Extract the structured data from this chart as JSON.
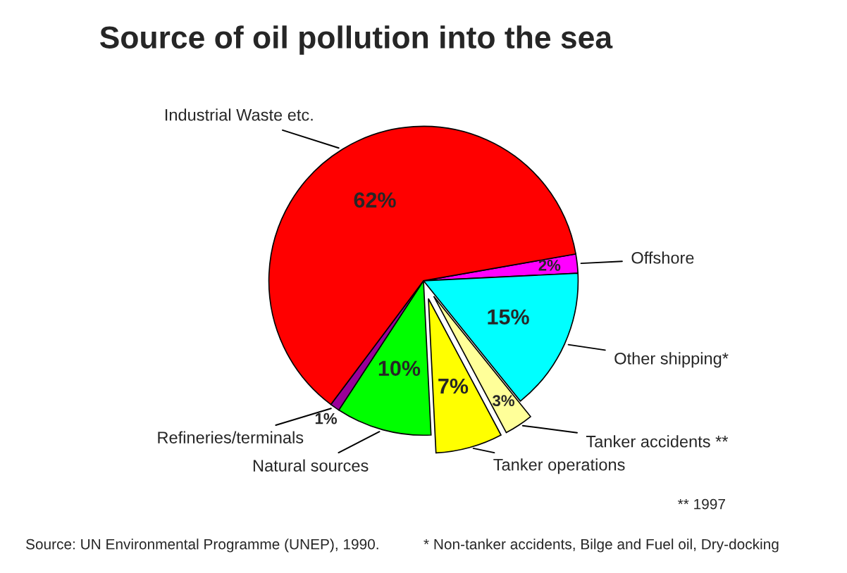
{
  "chart_data": {
    "type": "pie",
    "title": "Source of oil pollution into the sea",
    "categories": [
      "Offshore",
      "Other shipping*",
      "Tanker accidents **",
      "Tanker operations",
      "Natural sources",
      "Refineries/terminals",
      "Industrial Waste etc."
    ],
    "values": [
      2,
      15,
      3,
      7,
      10,
      1,
      62
    ],
    "value_labels": [
      "2%",
      "15%",
      "3%",
      "7%",
      "10%",
      "1%",
      "62%"
    ],
    "colors": [
      "#ff00ff",
      "#00ffff",
      "#ffff99",
      "#ffff00",
      "#00ff00",
      "#990099",
      "#ff0000"
    ],
    "legend": false,
    "annotations": [
      "** 1997",
      "Source: UN Environmental Programme (UNEP), 1990.",
      "* Non-tanker accidents, Bilge and Fuel oil, Dry-docking"
    ]
  }
}
